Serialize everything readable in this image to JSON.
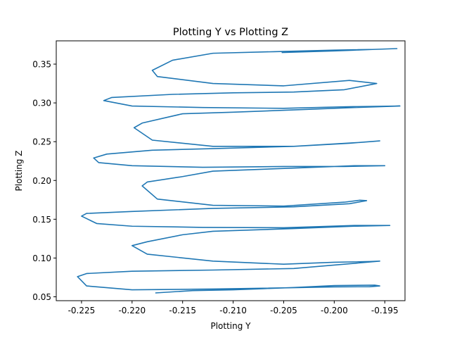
{
  "chart_data": {
    "type": "line",
    "title": "Plotting Y vs Plotting Z",
    "xlabel": "Plotting Y",
    "ylabel": "Plotting Z",
    "xlim": [
      -0.2275,
      -0.193
    ],
    "ylim": [
      0.045,
      0.38
    ],
    "x_ticks": [
      "-0.225",
      "-0.220",
      "-0.215",
      "-0.210",
      "-0.205",
      "-0.200",
      "-0.195"
    ],
    "x_tick_values": [
      -0.225,
      -0.22,
      -0.215,
      -0.21,
      -0.205,
      -0.2,
      -0.195
    ],
    "y_ticks": [
      "0.05",
      "0.10",
      "0.15",
      "0.20",
      "0.25",
      "0.30",
      "0.35"
    ],
    "y_tick_values": [
      0.05,
      0.1,
      0.15,
      0.2,
      0.25,
      0.3,
      0.35
    ],
    "grid": false,
    "line_color": "#1f77b4",
    "series": [
      {
        "x": [
          -0.2177,
          -0.214,
          -0.21,
          -0.204,
          -0.2,
          -0.196,
          -0.1955,
          -0.1965,
          -0.2,
          -0.205,
          -0.212,
          -0.22,
          -0.2245,
          -0.2254,
          -0.2245,
          -0.22,
          -0.212,
          -0.204,
          -0.199,
          -0.1955,
          -0.1965,
          -0.2,
          -0.205,
          -0.212,
          -0.2185,
          -0.22,
          -0.2185,
          -0.215,
          -0.212,
          -0.204,
          -0.198,
          -0.1945,
          -0.198,
          -0.205,
          -0.213,
          -0.22,
          -0.2235,
          -0.225,
          -0.2245,
          -0.22,
          -0.212,
          -0.204,
          -0.1985,
          -0.1968,
          -0.1975,
          -0.199,
          -0.205,
          -0.212,
          -0.2175,
          -0.219,
          -0.2185,
          -0.215,
          -0.212,
          -0.204,
          -0.198,
          -0.195,
          -0.199,
          -0.205,
          -0.213,
          -0.22,
          -0.2233,
          -0.2238,
          -0.2225,
          -0.218,
          -0.212,
          -0.204,
          -0.1985,
          -0.1955,
          -0.1975,
          -0.204,
          -0.212,
          -0.218,
          -0.2198,
          -0.219,
          -0.215,
          -0.21,
          -0.204,
          -0.198,
          -0.1935,
          -0.199,
          -0.205,
          -0.213,
          -0.22,
          -0.2228,
          -0.222,
          -0.216,
          -0.21,
          -0.204,
          -0.199,
          -0.1958,
          -0.1985,
          -0.205,
          -0.212,
          -0.2175,
          -0.218,
          -0.216,
          -0.212,
          -0.206,
          -0.2,
          -0.196,
          -0.1938,
          -0.196,
          -0.2,
          -0.2052
        ],
        "y": [
          0.055,
          0.058,
          0.059,
          0.062,
          0.0645,
          0.065,
          0.064,
          0.063,
          0.0628,
          0.0615,
          0.06,
          0.059,
          0.064,
          0.076,
          0.08,
          0.083,
          0.0845,
          0.0865,
          0.092,
          0.096,
          0.0955,
          0.0945,
          0.092,
          0.096,
          0.105,
          0.116,
          0.121,
          0.13,
          0.1345,
          0.138,
          0.141,
          0.142,
          0.142,
          0.139,
          0.1395,
          0.141,
          0.1445,
          0.154,
          0.1575,
          0.16,
          0.164,
          0.166,
          0.17,
          0.174,
          0.1745,
          0.172,
          0.167,
          0.168,
          0.176,
          0.193,
          0.198,
          0.205,
          0.212,
          0.216,
          0.219,
          0.219,
          0.218,
          0.218,
          0.217,
          0.219,
          0.223,
          0.229,
          0.234,
          0.239,
          0.241,
          0.244,
          0.248,
          0.251,
          0.249,
          0.244,
          0.244,
          0.252,
          0.268,
          0.274,
          0.286,
          0.288,
          0.291,
          0.294,
          0.296,
          0.295,
          0.293,
          0.294,
          0.296,
          0.303,
          0.307,
          0.311,
          0.313,
          0.314,
          0.317,
          0.325,
          0.329,
          0.322,
          0.325,
          0.334,
          0.342,
          0.355,
          0.364,
          0.366,
          0.368,
          0.369,
          0.37,
          0.369,
          0.367,
          0.365
        ]
      }
    ]
  }
}
